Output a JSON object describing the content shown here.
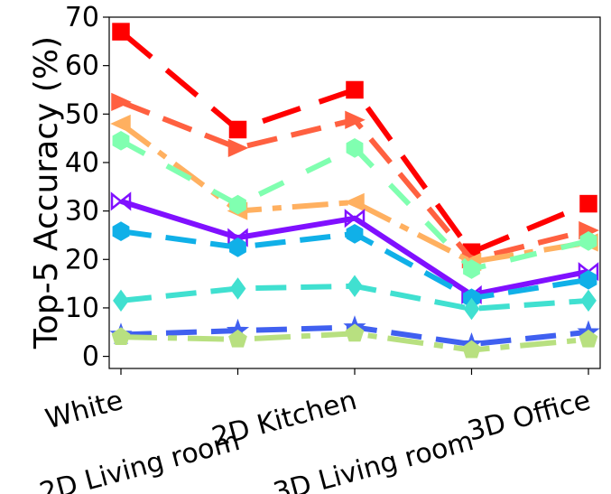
{
  "chart_data": {
    "type": "line",
    "title": "",
    "xlabel": "",
    "ylabel": "Top-5 Accuracy (%)",
    "categories": [
      "White",
      "2D Living room",
      "2D Kitchen",
      "3D Living room",
      "3D Office"
    ],
    "ylim": [
      -2.5,
      70
    ],
    "yticks": [
      0,
      10,
      20,
      30,
      40,
      50,
      60,
      70
    ],
    "grid": false,
    "legend": "none",
    "series": [
      {
        "color": "#ff0000",
        "dash": "long",
        "marker": "square",
        "values": [
          67.0,
          46.8,
          55.0,
          21.5,
          31.5
        ]
      },
      {
        "color": "#ff6040",
        "dash": "dash",
        "marker": "triangle-right",
        "values": [
          52.5,
          43.0,
          48.8,
          20.0,
          26.0
        ]
      },
      {
        "color": "#ffb060",
        "dash": "dashdot",
        "marker": "triangle-left",
        "values": [
          48.0,
          30.0,
          31.8,
          19.5,
          23.5
        ]
      },
      {
        "color": "#80ffb0",
        "dash": "dashgap",
        "marker": "hexagon",
        "values": [
          44.5,
          31.3,
          43.0,
          18.0,
          23.8
        ]
      },
      {
        "color": "#8010ff",
        "dash": "solid",
        "marker": "bowtie",
        "values": [
          32.0,
          24.5,
          28.5,
          12.7,
          17.5
        ]
      },
      {
        "color": "#10b0e8",
        "dash": "dash",
        "marker": "hexagon",
        "values": [
          25.8,
          22.5,
          25.3,
          12.0,
          15.8
        ]
      },
      {
        "color": "#40e0d0",
        "dash": "dash",
        "marker": "diamond",
        "values": [
          11.5,
          14.0,
          14.5,
          9.8,
          11.5
        ]
      },
      {
        "color": "#4060f0",
        "dash": "dash",
        "marker": "star",
        "values": [
          4.5,
          5.3,
          6.0,
          2.5,
          5.0
        ]
      },
      {
        "color": "#b8e080",
        "dash": "dashdot",
        "marker": "pentagon",
        "values": [
          4.0,
          3.5,
          4.7,
          1.3,
          3.5
        ]
      }
    ]
  }
}
